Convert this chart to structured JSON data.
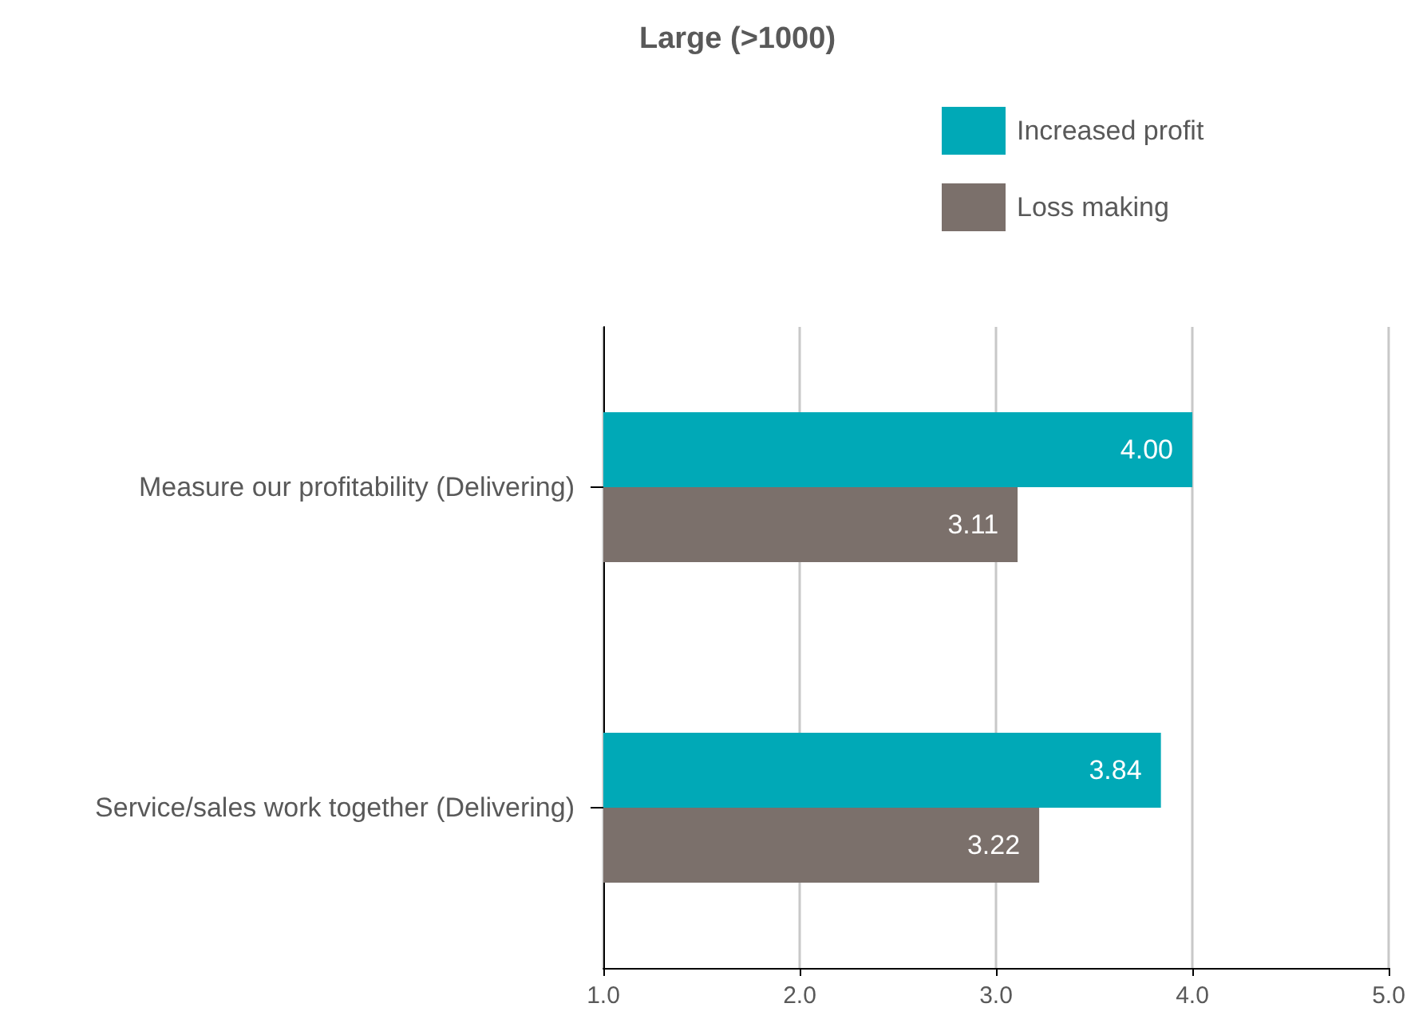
{
  "chart_data": {
    "type": "bar",
    "title": "Large (>1000)",
    "orientation": "horizontal",
    "categories": [
      "Measure our profitability (Delivering)",
      "Service/sales work together (Delivering)"
    ],
    "series": [
      {
        "name": "Increased profit",
        "color": "#00a9b7",
        "values": [
          4.0,
          3.84
        ],
        "value_labels": [
          "4.00",
          "3.84"
        ]
      },
      {
        "name": "Loss making",
        "color": "#7b706b",
        "values": [
          3.11,
          3.22
        ],
        "value_labels": [
          "3.11",
          "3.22"
        ]
      }
    ],
    "xlim": [
      1,
      5
    ],
    "xticks": [
      {
        "value": 1,
        "label": "1.0"
      },
      {
        "value": 2,
        "label": "2.0"
      },
      {
        "value": 3,
        "label": "3.0"
      },
      {
        "value": 4,
        "label": "4.0"
      },
      {
        "value": 5,
        "label": "5.0"
      }
    ],
    "grid": "x",
    "legend": "top right"
  }
}
